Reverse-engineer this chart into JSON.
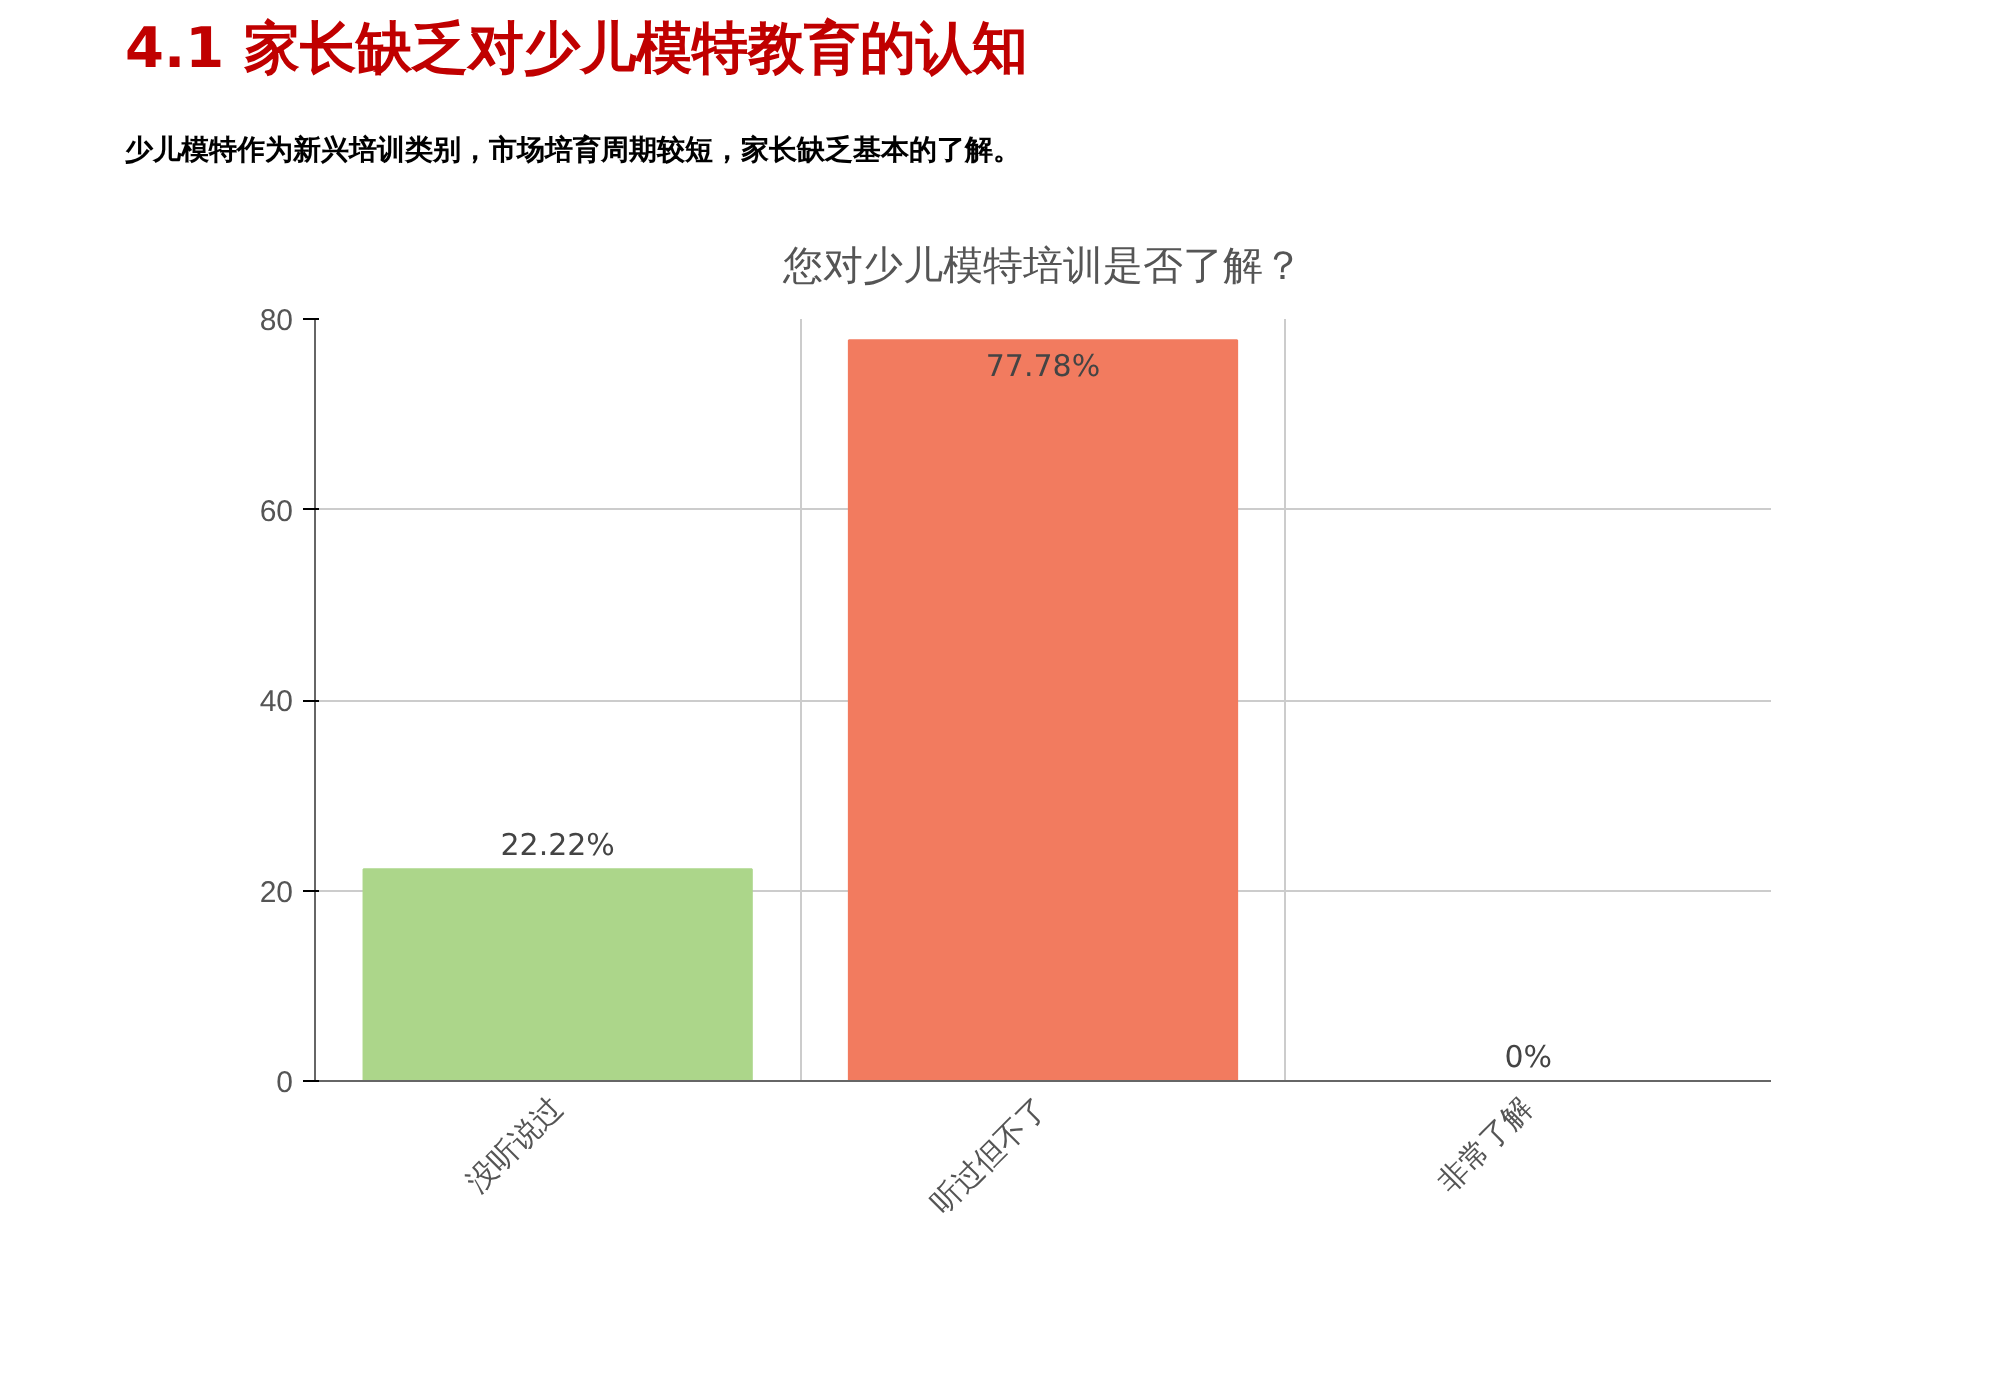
{
  "chart_data": {
    "type": "bar",
    "title": "4.1 家长缺乏对少儿模特教育的认知",
    "subtitle": "少儿模特作为新兴培训类别，市场培育周期较短，家长缺乏基本的了解。",
    "annotations": [
      "您对少儿模特培训是否了解？"
    ],
    "categories": [
      "没听说过",
      "听过但不了",
      "非常了解"
    ],
    "values": [
      22.22,
      77.78,
      0
    ],
    "colors": [
      "#acd68a",
      "#f27b5f",
      "#7cb5ec"
    ],
    "value_labels": [
      "22.22%",
      "77.78%",
      "0%"
    ],
    "ylim": [
      0,
      80
    ],
    "yticks": [
      0,
      20,
      40,
      60,
      80
    ],
    "grid": true
  }
}
